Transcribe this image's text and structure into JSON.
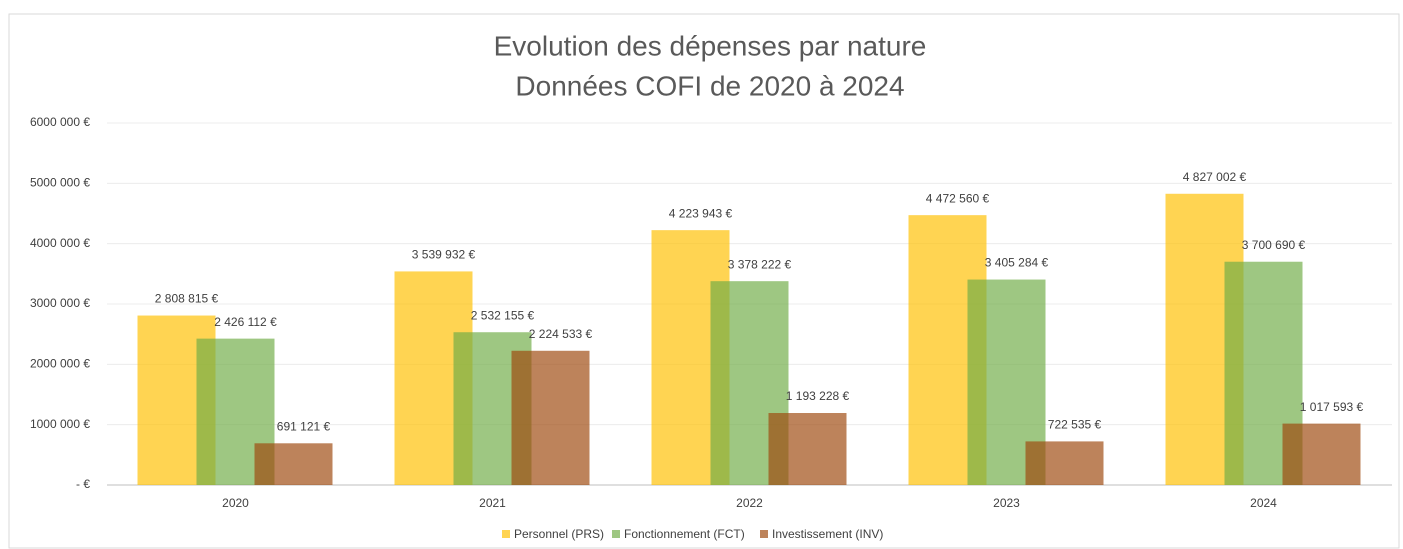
{
  "chart_data": {
    "type": "bar",
    "title": "Evolution des dépenses par nature",
    "subtitle": "Données COFI de 2020 à 2024",
    "categories": [
      "2020",
      "2021",
      "2022",
      "2023",
      "2024"
    ],
    "series": [
      {
        "name": "Personnel (PRS)",
        "color": "#ffc000",
        "values": [
          2808815,
          3539932,
          4223943,
          4472560,
          4827002
        ],
        "value_labels": [
          "2 808 815 €",
          "3 539 932 €",
          "4 223 943 €",
          "4 472 560 €",
          "4 827 002 €"
        ]
      },
      {
        "name": "Fonctionnement (FCT)",
        "color": "#70ad47",
        "values": [
          2426112,
          2532155,
          3378222,
          3405284,
          3700690
        ],
        "value_labels": [
          "2 426 112 €",
          "2 532 155 €",
          "3 378 222 €",
          "3 405 284 €",
          "3 700 690 €"
        ]
      },
      {
        "name": "Investissement (INV)",
        "color": "#9e480e",
        "values": [
          691121,
          2224533,
          1193228,
          722535,
          1017593
        ],
        "value_labels": [
          "691 121 €",
          "2 224 533 €",
          "1 193 228 €",
          "722 535 €",
          "1 017 593 €"
        ]
      }
    ],
    "ylim": [
      0,
      6000000
    ],
    "yticks": [
      {
        "value": 0,
        "label": "-   €"
      },
      {
        "value": 1000000,
        "label": "1000 000 €"
      },
      {
        "value": 2000000,
        "label": "2000 000 €"
      },
      {
        "value": 3000000,
        "label": "3000 000 €"
      },
      {
        "value": 4000000,
        "label": "4000 000 €"
      },
      {
        "value": 5000000,
        "label": "5000 000 €"
      },
      {
        "value": 6000000,
        "label": "6000 000 €"
      }
    ],
    "grid": true,
    "legend": "bottom"
  }
}
